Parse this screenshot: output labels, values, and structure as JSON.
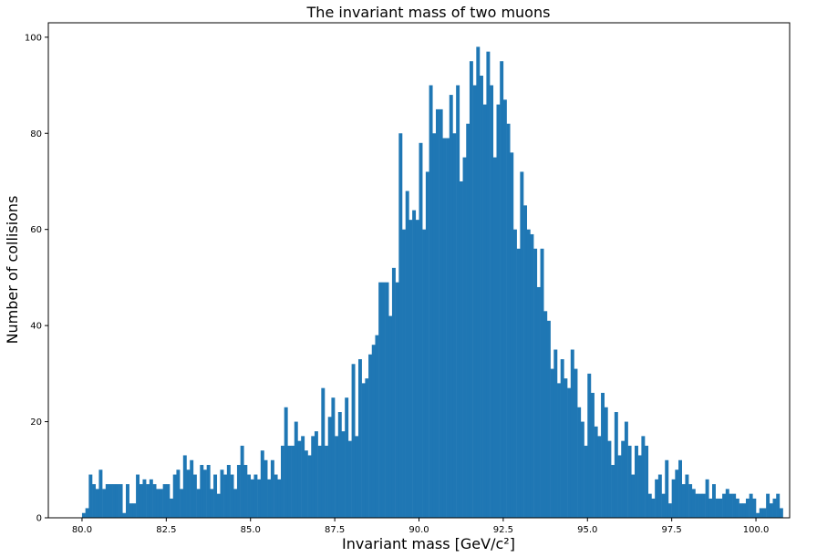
{
  "chart_data": {
    "type": "bar",
    "title": "The invariant mass of two muons",
    "xlabel": "Invariant mass [GeV/c²]",
    "ylabel": "Number of collisions",
    "xlim": [
      79.0,
      101.0
    ],
    "ylim": [
      0,
      103
    ],
    "grid": false,
    "bar_color": "#1f77b4",
    "bin_start": 80.0,
    "bin_width": 0.1,
    "x_ticks": [
      {
        "value": 80.0,
        "label": "80.0"
      },
      {
        "value": 82.5,
        "label": "82.5"
      },
      {
        "value": 85.0,
        "label": "85.0"
      },
      {
        "value": 87.5,
        "label": "87.5"
      },
      {
        "value": 90.0,
        "label": "90.0"
      },
      {
        "value": 92.5,
        "label": "92.5"
      },
      {
        "value": 95.0,
        "label": "95.0"
      },
      {
        "value": 97.5,
        "label": "97.5"
      },
      {
        "value": 100.0,
        "label": "100.0"
      }
    ],
    "y_ticks": [
      {
        "value": 0,
        "label": "0"
      },
      {
        "value": 20,
        "label": "20"
      },
      {
        "value": 40,
        "label": "40"
      },
      {
        "value": 60,
        "label": "60"
      },
      {
        "value": 80,
        "label": "80"
      },
      {
        "value": 100,
        "label": "100"
      }
    ],
    "values": [
      1,
      2,
      9,
      7,
      6,
      10,
      6,
      7,
      7,
      7,
      7,
      7,
      1,
      7,
      3,
      3,
      9,
      7,
      8,
      7,
      8,
      7,
      6,
      6,
      7,
      7,
      4,
      9,
      10,
      6,
      13,
      10,
      12,
      9,
      6,
      11,
      10,
      11,
      6,
      9,
      5,
      10,
      9,
      11,
      9,
      6,
      11,
      15,
      11,
      9,
      8,
      9,
      8,
      14,
      12,
      8,
      12,
      9,
      8,
      15,
      23,
      15,
      15,
      20,
      16,
      17,
      14,
      13,
      17,
      18,
      15,
      27,
      15,
      21,
      25,
      17,
      22,
      18,
      25,
      16,
      32,
      17,
      33,
      28,
      29,
      34,
      36,
      38,
      49,
      49,
      49,
      42,
      52,
      49,
      80,
      60,
      68,
      62,
      64,
      62,
      78,
      60,
      72,
      90,
      80,
      85,
      85,
      79,
      79,
      88,
      80,
      90,
      70,
      75,
      82,
      95,
      90,
      98,
      92,
      86,
      97,
      90,
      75,
      86,
      95,
      87,
      82,
      76,
      60,
      56,
      72,
      65,
      60,
      59,
      56,
      48,
      56,
      43,
      41,
      31,
      35,
      28,
      33,
      29,
      27,
      35,
      31,
      23,
      20,
      15,
      30,
      26,
      19,
      17,
      26,
      23,
      16,
      11,
      22,
      13,
      16,
      20,
      15,
      9,
      15,
      13,
      17,
      15,
      5,
      4,
      8,
      9,
      5,
      12,
      3,
      8,
      10,
      12,
      7,
      9,
      7,
      6,
      5,
      5,
      5,
      8,
      4,
      7,
      4,
      4,
      5,
      6,
      5,
      5,
      4,
      3,
      3,
      4,
      5,
      4,
      1,
      2,
      2,
      5,
      3,
      4,
      5,
      2
    ]
  }
}
